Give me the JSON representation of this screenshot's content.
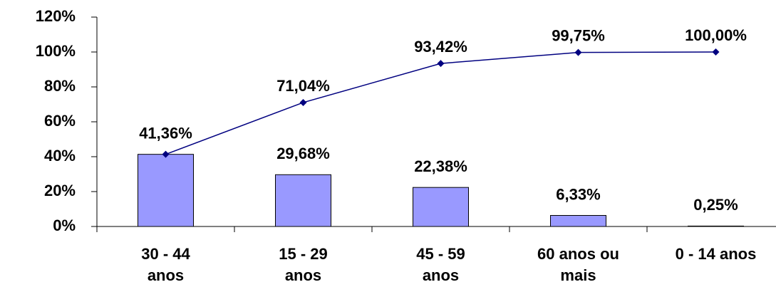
{
  "chart_data": {
    "type": "bar",
    "categories": [
      "30 - 44 anos",
      "15 - 29 anos",
      "45 - 59 anos",
      "60 anos ou mais",
      "0 - 14 anos"
    ],
    "series": [
      {
        "type": "bar",
        "color": "#9999ff",
        "values": [
          41.36,
          29.68,
          22.38,
          6.33,
          0.25
        ],
        "value_labels": [
          "41,36%",
          "29,68%",
          "22,38%",
          "6,33%",
          "0,25%"
        ]
      },
      {
        "type": "line",
        "color": "#000080",
        "values": [
          41.36,
          71.04,
          93.42,
          99.75,
          100
        ],
        "value_labels": [
          null,
          "71,04%",
          "93,42%",
          "99,75%",
          "100,00%"
        ]
      }
    ],
    "ylim": [
      0,
      120
    ],
    "yticks": [
      {
        "value": 0,
        "label": "0%"
      },
      {
        "value": 20,
        "label": "20%"
      },
      {
        "value": 40,
        "label": "40%"
      },
      {
        "value": 60,
        "label": "60%"
      },
      {
        "value": 80,
        "label": "80%"
      },
      {
        "value": 100,
        "label": "100%"
      },
      {
        "value": 120,
        "label": "120%"
      }
    ]
  }
}
